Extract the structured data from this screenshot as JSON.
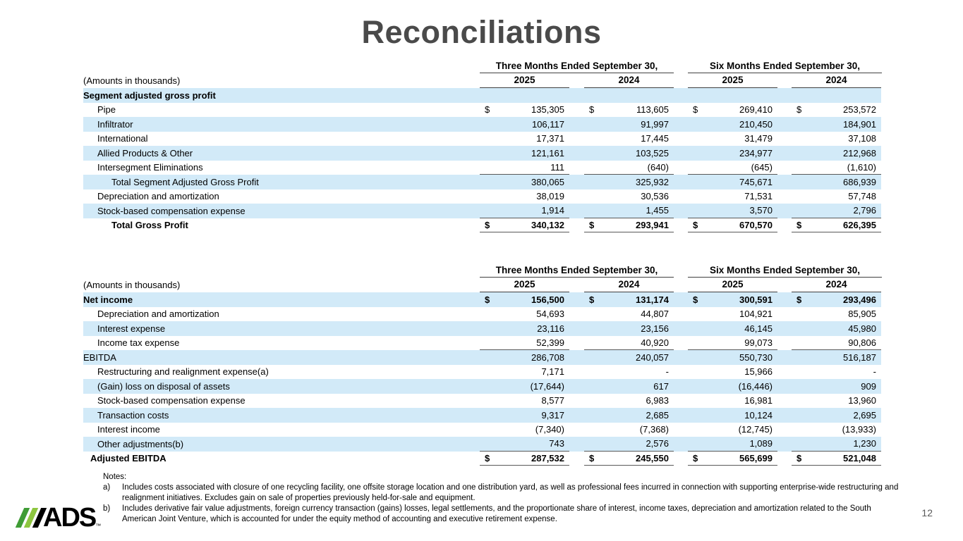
{
  "slide": {
    "title": "Reconciliations",
    "page_number": "12"
  },
  "colors": {
    "band_blue": "#d2eaf8",
    "rule_dark": "#404040",
    "rule_gray": "#595959",
    "title_gray": "#4a4a4a",
    "logo_green_dark": "#3f9c35",
    "logo_green_light": "#8dc63f"
  },
  "logo": {
    "text": "ADS",
    "tm": "™"
  },
  "tables": [
    {
      "amounts_note": "(Amounts in thousands)",
      "col_groups": [
        "Three Months Ended September 30,",
        "Six Months Ended September 30,"
      ],
      "years": [
        "2025",
        "2024",
        "2025",
        "2024"
      ],
      "rows": [
        {
          "label": "Segment adjusted gross profit",
          "indent": 0,
          "bold": true,
          "band": true,
          "values": [
            "",
            "",
            "",
            ""
          ]
        },
        {
          "label": "Pipe",
          "indent": 2,
          "dollar": true,
          "values": [
            "135,305",
            "113,605",
            "269,410",
            "253,572"
          ]
        },
        {
          "label": "Infiltrator",
          "indent": 2,
          "band": true,
          "values": [
            "106,117",
            "91,997",
            "210,450",
            "184,901"
          ]
        },
        {
          "label": "International",
          "indent": 2,
          "values": [
            "17,371",
            "17,445",
            "31,479",
            "37,108"
          ]
        },
        {
          "label": "Allied Products & Other",
          "indent": 2,
          "band": true,
          "values": [
            "121,161",
            "103,525",
            "234,977",
            "212,968"
          ]
        },
        {
          "label": "Intersegment Eliminations",
          "indent": 2,
          "bb": true,
          "values": [
            "111",
            "(640)",
            "(645)",
            "(1,610)"
          ]
        },
        {
          "label": "Total Segment Adjusted Gross Profit",
          "indent": 4,
          "band": true,
          "values": [
            "380,065",
            "325,932",
            "745,671",
            "686,939"
          ]
        },
        {
          "label": "Depreciation and amortization",
          "indent": 2,
          "values": [
            "38,019",
            "30,536",
            "71,531",
            "57,748"
          ]
        },
        {
          "label": "Stock-based compensation expense",
          "indent": 2,
          "band": true,
          "bb": true,
          "values": [
            "1,914",
            "1,455",
            "3,570",
            "2,796"
          ]
        },
        {
          "label": "Total Gross Profit",
          "indent": 4,
          "bold": true,
          "dollar": true,
          "bb": true,
          "values": [
            "340,132",
            "293,941",
            "670,570",
            "626,395"
          ]
        }
      ]
    },
    {
      "amounts_note": "(Amounts in thousands)",
      "col_groups": [
        "Three Months Ended September 30,",
        "Six Months Ended September 30,"
      ],
      "years": [
        "2025",
        "2024",
        "2025",
        "2024"
      ],
      "rows": [
        {
          "label": "Net income",
          "indent": 0,
          "bold": true,
          "band": true,
          "dollar": true,
          "values": [
            "156,500",
            "131,174",
            "300,591",
            "293,496"
          ]
        },
        {
          "label": "Depreciation and amortization",
          "indent": 2,
          "values": [
            "54,693",
            "44,807",
            "104,921",
            "85,905"
          ]
        },
        {
          "label": "Interest expense",
          "indent": 2,
          "band": true,
          "values": [
            "23,116",
            "23,156",
            "46,145",
            "45,980"
          ]
        },
        {
          "label": "Income tax expense",
          "indent": 2,
          "bb": true,
          "values": [
            "52,399",
            "40,920",
            "99,073",
            "90,806"
          ]
        },
        {
          "label": "EBITDA",
          "indent": 0,
          "band": true,
          "values": [
            "286,708",
            "240,057",
            "550,730",
            "516,187"
          ]
        },
        {
          "label": "Restructuring and realignment expense(a)",
          "indent": 2,
          "values": [
            "7,171",
            "-",
            "15,966",
            "-"
          ]
        },
        {
          "label": "(Gain) loss on disposal of assets",
          "indent": 2,
          "band": true,
          "values": [
            "(17,644)",
            "617",
            "(16,446)",
            "909"
          ]
        },
        {
          "label": "Stock-based compensation expense",
          "indent": 2,
          "values": [
            "8,577",
            "6,983",
            "16,981",
            "13,960"
          ]
        },
        {
          "label": "Transaction costs",
          "indent": 2,
          "band": true,
          "values": [
            "9,317",
            "2,685",
            "10,124",
            "2,695"
          ]
        },
        {
          "label": "Interest income",
          "indent": 2,
          "values": [
            "(7,340)",
            "(7,368)",
            "(12,745)",
            "(13,933)"
          ]
        },
        {
          "label": "Other adjustments(b)",
          "indent": 2,
          "band": true,
          "bb": true,
          "values": [
            "743",
            "2,576",
            "1,089",
            "1,230"
          ]
        },
        {
          "label": "Adjusted EBITDA",
          "indent": 1,
          "bold": true,
          "dollar": true,
          "bb": true,
          "values": [
            "287,532",
            "245,550",
            "565,699",
            "521,048"
          ]
        }
      ]
    }
  ],
  "notes": {
    "heading": "Notes:",
    "items": [
      {
        "marker": "a)",
        "text": "Includes costs associated with closure of one recycling facility, one offsite storage location and one distribution yard, as well as professional fees incurred in connection with supporting enterprise-wide restructuring and realignment initiatives. Excludes gain on sale of properties previously held-for-sale and equipment."
      },
      {
        "marker": "b)",
        "text": "Includes derivative fair value adjustments, foreign currency transaction (gains) losses, legal settlements, and the proportionate share of interest, income taxes, depreciation and amortization related to the South American Joint Venture, which is accounted for under the equity method of accounting and executive retirement expense."
      }
    ]
  }
}
